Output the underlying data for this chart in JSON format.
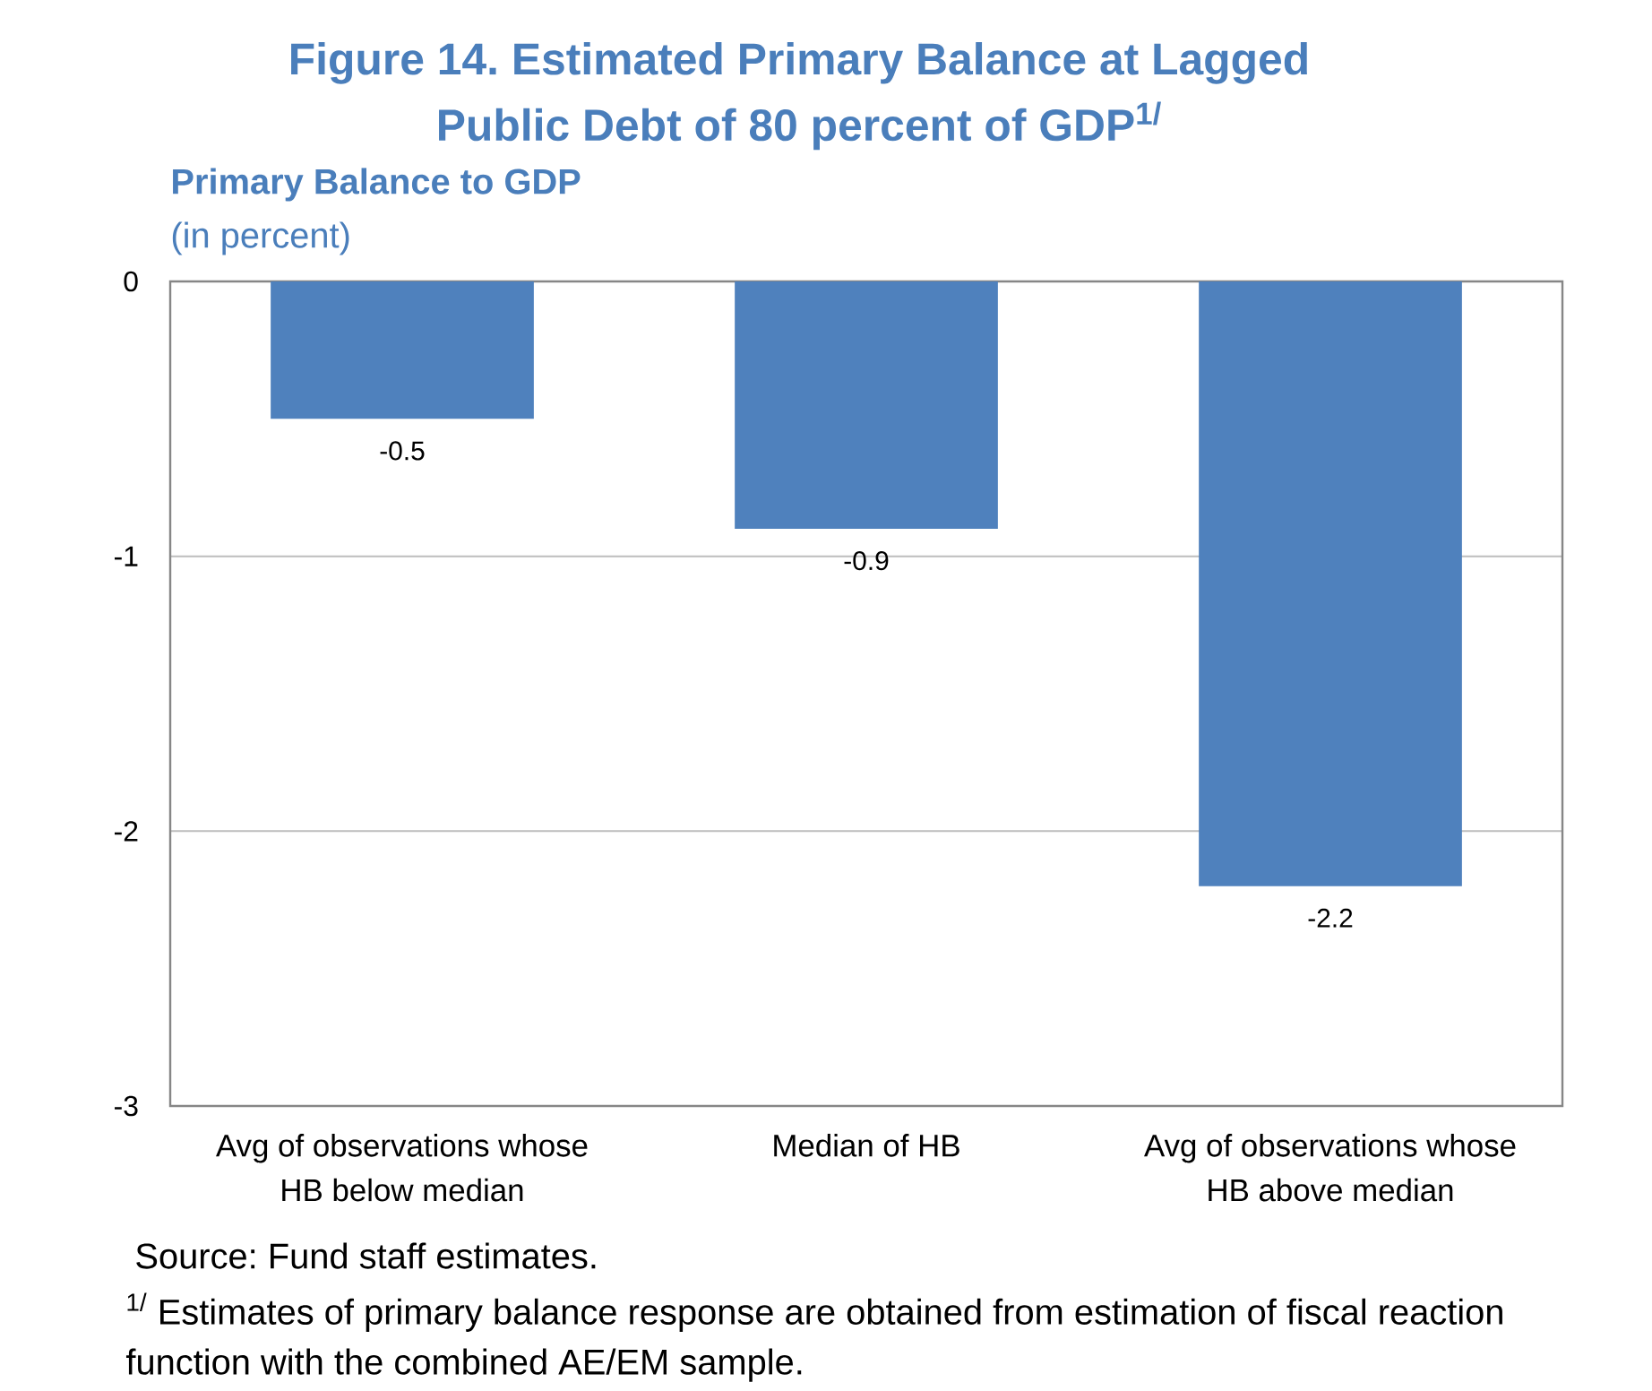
{
  "chart_data": {
    "type": "bar",
    "title": "Figure 14. Estimated Primary Balance at Lagged Public Debt of 80 percent of GDP$^{1/}$",
    "ylabel": "Primary Balance to GDP",
    "subtitle": "(in percent)",
    "categories": [
      "Avg of observations whose HB below median",
      "Median of HB",
      "Avg of observations whose HB above median"
    ],
    "values": [
      -0.5,
      -0.9,
      -2.2
    ],
    "color": "#4f81bd",
    "ylim": [
      -3,
      0
    ],
    "yticks": [
      0,
      -1,
      -2,
      -3
    ],
    "grid": "y",
    "data_labels": true,
    "annotations": [
      "Source: Fund staff estimates.",
      "$^{1/}$ Estimates of primary balance response are obtained from estimation of fiscal reaction function with the combined AE/EM sample."
    ]
  }
}
